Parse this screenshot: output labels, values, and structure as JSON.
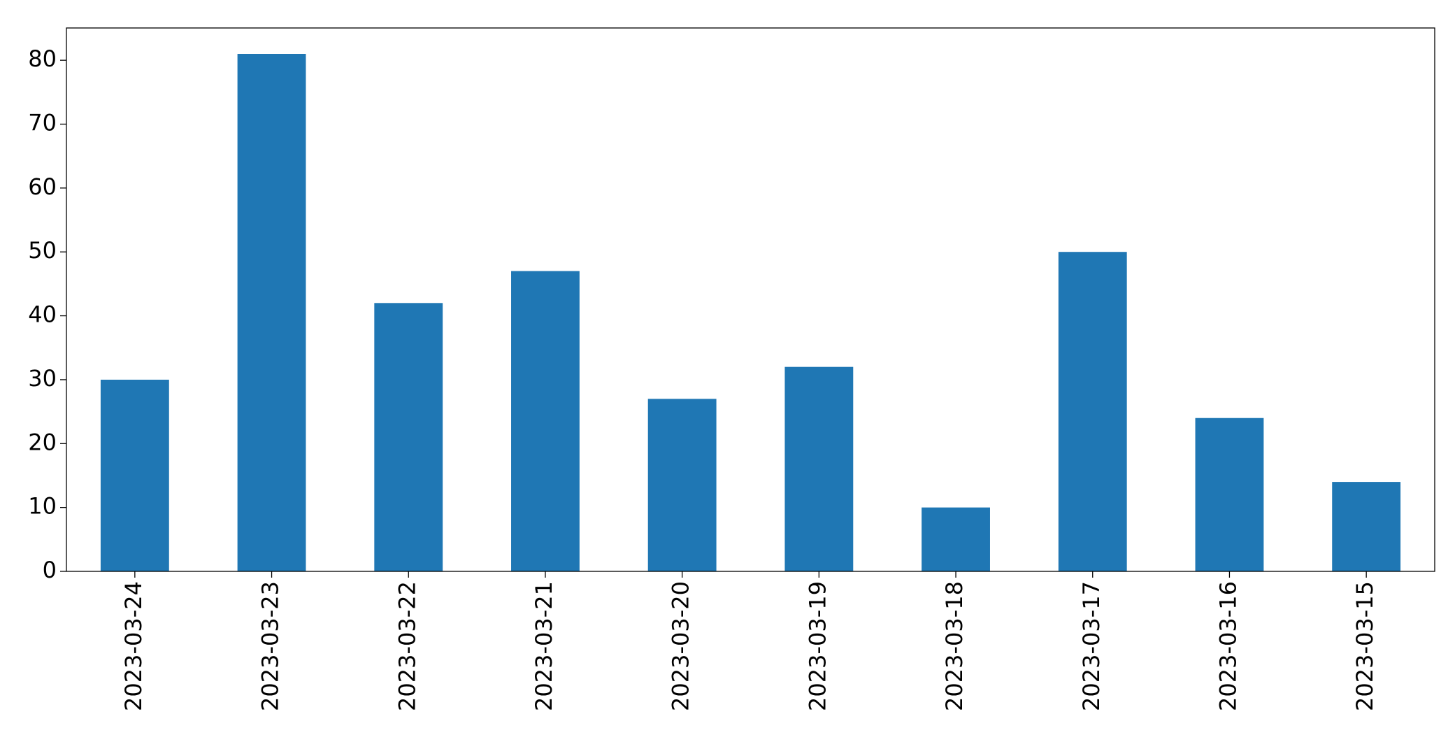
{
  "chart_data": {
    "type": "bar",
    "categories": [
      "2023-03-24",
      "2023-03-23",
      "2023-03-22",
      "2023-03-21",
      "2023-03-20",
      "2023-03-19",
      "2023-03-18",
      "2023-03-17",
      "2023-03-16",
      "2023-03-15"
    ],
    "values": [
      30,
      81,
      42,
      47,
      27,
      32,
      10,
      50,
      24,
      14
    ],
    "color": "#1f77b4",
    "ylim": [
      0,
      85.05
    ],
    "yticks": [
      0,
      10,
      20,
      30,
      40,
      50,
      60,
      70,
      80
    ],
    "grid": false
  }
}
